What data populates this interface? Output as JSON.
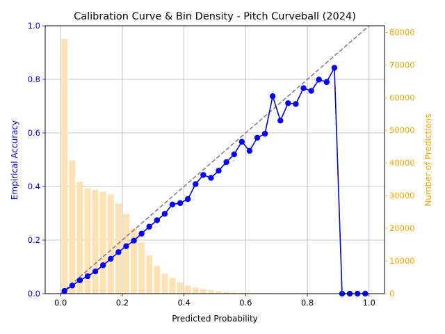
{
  "chart_data": {
    "type": "line",
    "title": "Calibration Curve & Bin Density - Pitch Curveball (2024)",
    "xlabel": "Predicted Probability",
    "ylabel_left": "Empirical Accuracy",
    "ylabel_right": "Number of Predictions",
    "xlim": [
      -0.05,
      1.05
    ],
    "ylim_left": [
      0,
      1.0
    ],
    "ylim_right": [
      0,
      82000
    ],
    "x_ticks": [
      "0.0",
      "0.2",
      "0.4",
      "0.6",
      "0.8",
      "1.0"
    ],
    "y_left_ticks": [
      "0.0",
      "0.2",
      "0.4",
      "0.6",
      "0.8",
      "1.0"
    ],
    "y_right_ticks": [
      "0",
      "10000",
      "20000",
      "30000",
      "40000",
      "50000",
      "60000",
      "70000",
      "80000"
    ],
    "grid": true,
    "colors": {
      "accuracy": "#0000cc",
      "accuracy_marker": "#0000ff",
      "bars": "#ffdfb0",
      "diagonal": "#808080",
      "left_axis": "#0000ff",
      "right_axis": "#ffa500"
    },
    "bin_centers": [
      0.0125,
      0.0375,
      0.0625,
      0.0875,
      0.1125,
      0.1375,
      0.1625,
      0.1875,
      0.2125,
      0.2375,
      0.2625,
      0.2875,
      0.3125,
      0.3375,
      0.3625,
      0.3875,
      0.4125,
      0.4375,
      0.4625,
      0.4875,
      0.5125,
      0.5375,
      0.5625,
      0.5875,
      0.6125,
      0.6375,
      0.6625,
      0.6875,
      0.7125,
      0.7375,
      0.7625,
      0.7875,
      0.8125,
      0.8375,
      0.8625,
      0.8875,
      0.9125,
      0.9375,
      0.9625,
      0.9875
    ],
    "empirical_accuracy": [
      0.01,
      0.03,
      0.05,
      0.065,
      0.083,
      0.106,
      0.13,
      0.155,
      0.177,
      0.198,
      0.224,
      0.25,
      0.274,
      0.298,
      0.333,
      0.338,
      0.353,
      0.409,
      0.443,
      0.432,
      0.459,
      0.491,
      0.52,
      0.567,
      0.533,
      0.582,
      0.597,
      0.737,
      0.646,
      0.711,
      0.708,
      0.767,
      0.757,
      0.799,
      0.79,
      0.843,
      0.0,
      0.0,
      0.0,
      0.0
    ],
    "bin_counts": [
      78000,
      40800,
      34200,
      32200,
      31800,
      31200,
      30400,
      27600,
      24300,
      20100,
      15700,
      11700,
      8500,
      6100,
      4800,
      3400,
      2500,
      1900,
      1400,
      1000,
      700,
      500,
      400,
      300,
      200,
      150,
      120,
      100,
      80,
      60,
      50,
      40,
      30,
      20,
      20,
      10,
      5,
      3,
      2,
      1
    ],
    "diagonal": {
      "x": [
        0,
        1
      ],
      "y": [
        0,
        1
      ],
      "style": "dashed"
    }
  }
}
